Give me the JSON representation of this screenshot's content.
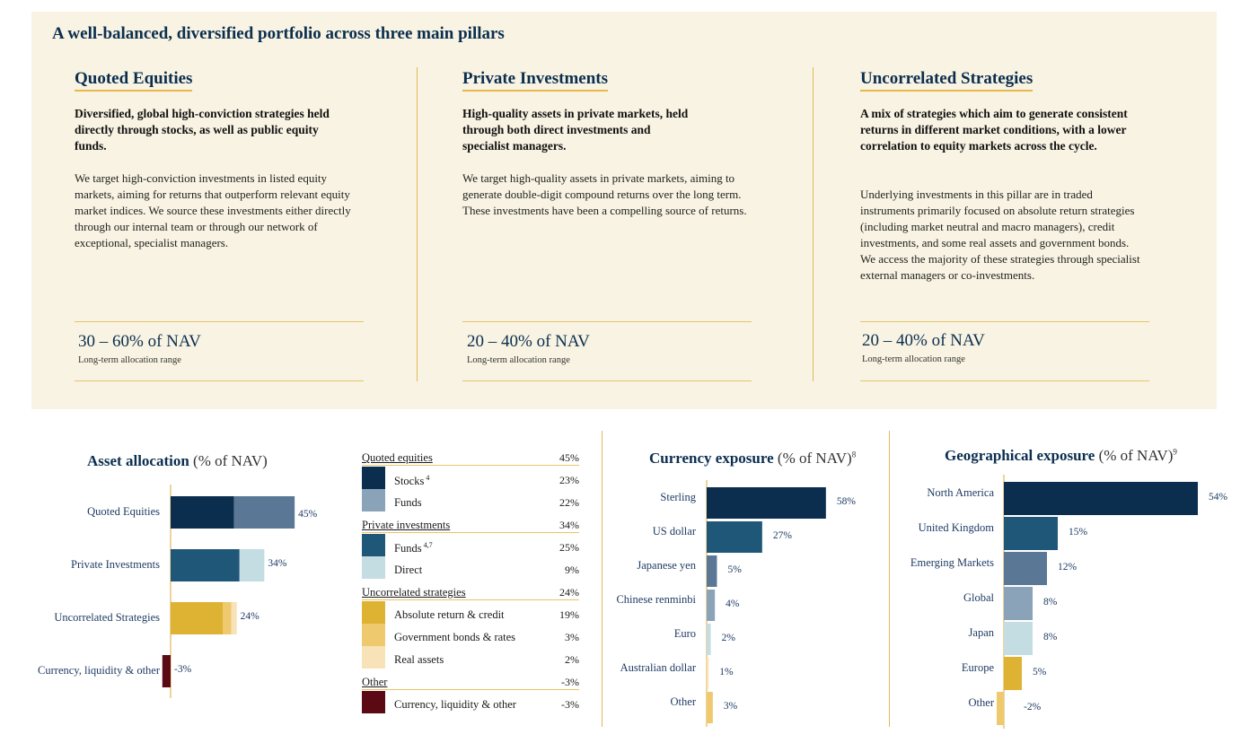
{
  "page": {
    "title": "A well-balanced, diversified portfolio across three main pillars"
  },
  "pillars": [
    {
      "title": "Quoted Equities",
      "lead": "Diversified, global high-conviction strategies held directly through stocks, as well as public equity funds.",
      "body": "We target high-conviction investments in listed equity markets, aiming for returns that outperform relevant equity market indices. We source these investments either directly through our internal team or through our network of exceptional, specialist managers.",
      "range": "30 – 60% of NAV",
      "range_note": "Long-term allocation range"
    },
    {
      "title": "Private Investments",
      "lead": "High-quality assets in private markets, held through both direct investments and specialist managers.",
      "body": "We target high-quality assets in private markets, aiming to generate double-digit compound returns over the long term. These investments have been a compelling source of returns.",
      "range": "20 – 40% of NAV",
      "range_note": "Long-term allocation range"
    },
    {
      "title": "Uncorrelated Strategies",
      "lead": "A mix of strategies which aim to generate consistent returns in different market conditions, with a lower correlation to equity markets across the cycle.",
      "body": "Underlying investments in this pillar are in traded instruments primarily focused on absolute return strategies (including market neutral and macro managers), credit investments, and some real assets and government bonds. We access the majority of these strategies through specialist external managers or co-investments.",
      "range": "20 – 40% of NAV",
      "range_note": "Long-term allocation range"
    }
  ],
  "colors": {
    "navy": "#0b2e4f",
    "steel": "#5a7795",
    "teal": "#1f5778",
    "light_blue": "#c3dde3",
    "mid_blue": "#8aa3b8",
    "gold": "#deb232",
    "gold_light": "#efc96e",
    "cream": "#f8e3b8",
    "maroon": "#5b0a14",
    "axis": "#e3b85a"
  },
  "chart_data": [
    {
      "type": "bar",
      "orientation": "horizontal",
      "stacked": true,
      "title": "Asset allocation",
      "title_suffix": "(% of NAV)",
      "categories": [
        "Quoted Equities",
        "Private Investments",
        "Uncorrelated Strategies",
        "Currency, liquidity & other"
      ],
      "totals": [
        45,
        34,
        24,
        -3
      ],
      "value_labels": [
        "45%",
        "34%",
        "24%",
        "-3%"
      ],
      "segments": [
        [
          {
            "name": "Stocks",
            "value": 23,
            "color": "#0b2e4f"
          },
          {
            "name": "Funds",
            "value": 22,
            "color": "#5a7795"
          }
        ],
        [
          {
            "name": "Funds",
            "value": 25,
            "color": "#1f5778"
          },
          {
            "name": "Direct",
            "value": 9,
            "color": "#c3dde3"
          }
        ],
        [
          {
            "name": "Absolute return & credit",
            "value": 19,
            "color": "#deb232"
          },
          {
            "name": "Government bonds & rates",
            "value": 3,
            "color": "#efc96e"
          },
          {
            "name": "Real assets",
            "value": 2,
            "color": "#f8e3b8"
          }
        ],
        [
          {
            "name": "Currency, liquidity & other",
            "value": -3,
            "color": "#5b0a14"
          }
        ]
      ]
    },
    {
      "type": "table",
      "title": "",
      "groups": [
        {
          "name": "Quoted equities",
          "value": "45%",
          "items": [
            {
              "name": "Stocks",
              "sup": "4",
              "value": "23%",
              "color": "#0b2e4f"
            },
            {
              "name": "Funds",
              "sup": "",
              "value": "22%",
              "color": "#8aa3b8"
            }
          ]
        },
        {
          "name": "Private investments",
          "value": "34%",
          "items": [
            {
              "name": "Funds",
              "sup": "4,7",
              "value": "25%",
              "color": "#1f5778"
            },
            {
              "name": "Direct",
              "sup": "",
              "value": "9%",
              "color": "#c3dde3"
            }
          ]
        },
        {
          "name": "Uncorrelated strategies",
          "value": "24%",
          "items": [
            {
              "name": "Absolute return & credit",
              "sup": "",
              "value": "19%",
              "color": "#deb232"
            },
            {
              "name": "Government bonds & rates",
              "sup": "",
              "value": "3%",
              "color": "#efc96e"
            },
            {
              "name": "Real assets",
              "sup": "",
              "value": "2%",
              "color": "#f8e3b8"
            }
          ]
        },
        {
          "name": "Other",
          "value": "-3%",
          "items": [
            {
              "name": "Currency, liquidity & other",
              "sup": "",
              "value": "-3%",
              "color": "#5b0a14"
            }
          ]
        }
      ]
    },
    {
      "type": "bar",
      "orientation": "horizontal",
      "title": "Currency exposure",
      "title_suffix": "(% of NAV)",
      "title_sup": "8",
      "categories": [
        "Sterling",
        "US dollar",
        "Japanese yen",
        "Chinese renminbi",
        "Euro",
        "Australian dollar",
        "Other"
      ],
      "values": [
        58,
        27,
        5,
        4,
        2,
        1,
        3
      ],
      "value_labels": [
        "58%",
        "27%",
        "5%",
        "4%",
        "2%",
        "1%",
        "3%"
      ],
      "colors": [
        "#0b2e4f",
        "#1f5778",
        "#5a7795",
        "#8aa3b8",
        "#c3dde3",
        "#f8e3b8",
        "#efc96e"
      ]
    },
    {
      "type": "bar",
      "orientation": "horizontal",
      "title": "Geographical exposure",
      "title_suffix": "(% of NAV)",
      "title_sup": "9",
      "categories": [
        "North America",
        "United Kingdom",
        "Emerging Markets",
        "Global",
        "Japan",
        "Europe",
        "Other"
      ],
      "values": [
        54,
        15,
        12,
        8,
        8,
        5,
        -2
      ],
      "value_labels": [
        "54%",
        "15%",
        "12%",
        "8%",
        "8%",
        "5%",
        "-2%"
      ],
      "colors": [
        "#0b2e4f",
        "#1f5778",
        "#5a7795",
        "#8aa3b8",
        "#c3dde3",
        "#deb232",
        "#efc96e"
      ]
    }
  ]
}
